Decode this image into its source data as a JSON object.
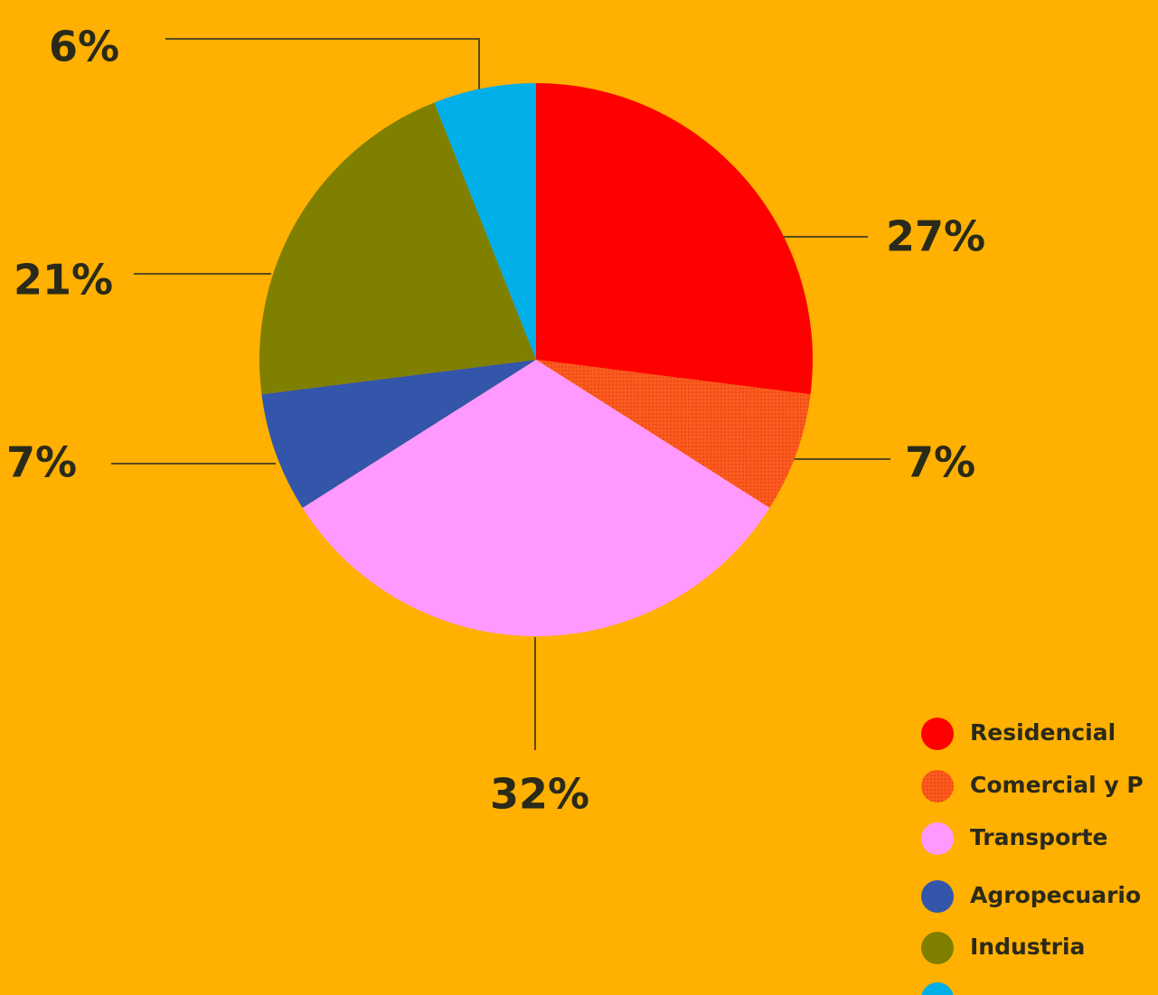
{
  "chart_data": {
    "type": "pie",
    "categories": [
      "Residencial",
      "Comercial  y  P",
      "Transporte",
      "Agropecuario",
      "Industria",
      null
    ],
    "values": [
      27,
      7,
      32,
      7,
      21,
      6
    ],
    "value_labels": [
      "27%",
      "7%",
      "32%",
      "7%",
      "21%",
      "6%"
    ],
    "colors": [
      "#ff0000",
      "#ff5a1e",
      "#ff99ff",
      "#3355aa",
      "#7f7f00",
      "#00aee8"
    ],
    "legend": "bottom-right"
  }
}
